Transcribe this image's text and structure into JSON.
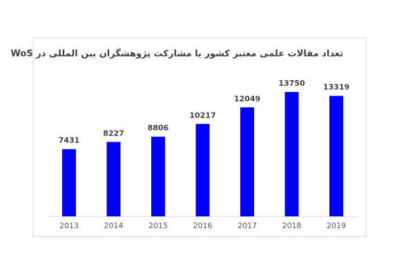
{
  "chart_data": {
    "type": "bar",
    "title": "تعداد مقالات علمی معتبر کشور با مشارکت پژوهشگران بین المللی در WoS",
    "categories": [
      "2013",
      "2014",
      "2015",
      "2016",
      "2017",
      "2018",
      "2019"
    ],
    "values": [
      7431,
      8227,
      8806,
      10217,
      12049,
      13750,
      13319
    ],
    "color": "#0000ff"
  }
}
